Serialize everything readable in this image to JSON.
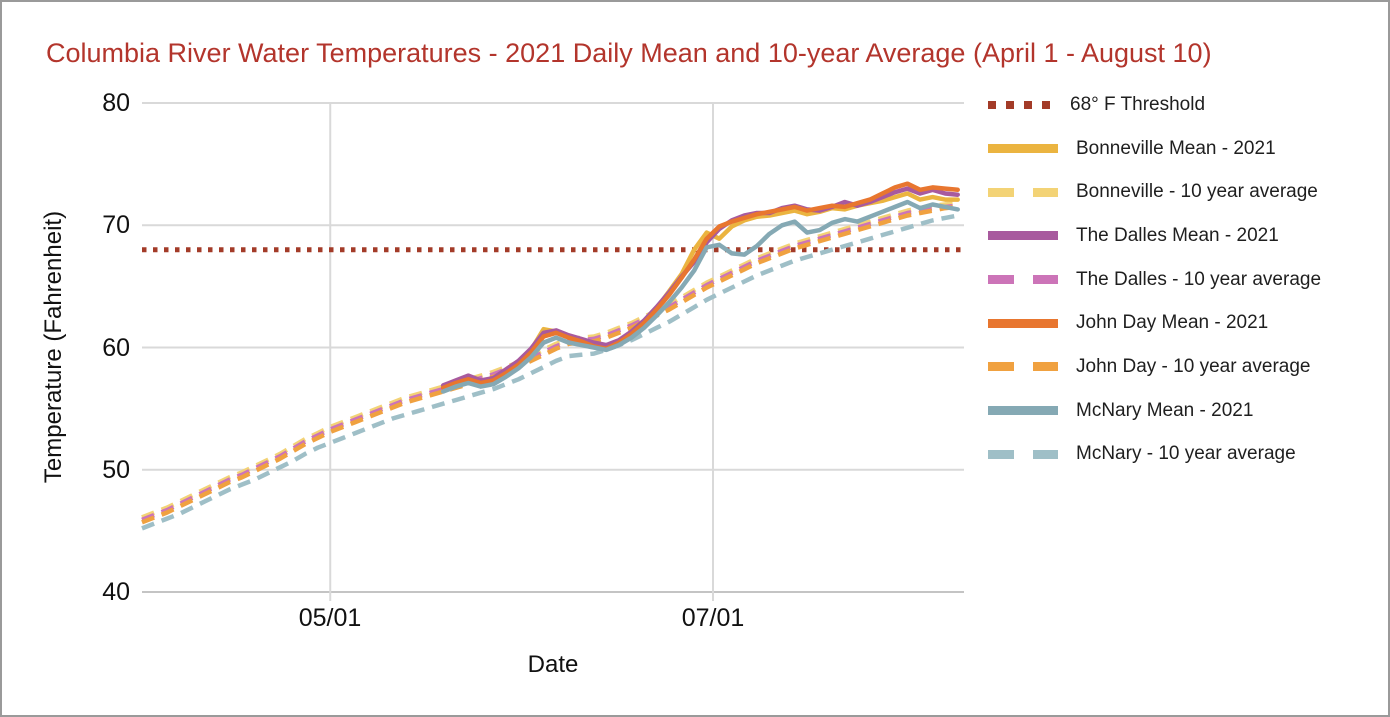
{
  "title": {
    "text": "Columbia River Water Temperatures - 2021 Daily Mean and 10-year Average (April 1 - August 10)",
    "color": "#B3352C"
  },
  "axes": {
    "y_title": "Temperature (Fahrenheit)",
    "x_title": "Date",
    "y_ticks": [
      "80",
      "70",
      "60",
      "50",
      "40"
    ],
    "x_ticks": [
      "05/01",
      "07/01"
    ]
  },
  "legend": {
    "items": [
      {
        "label": "68° F Threshold",
        "color": "#A33B28",
        "style": "dotted"
      },
      {
        "label": "Bonneville Mean - 2021",
        "color": "#EBB440",
        "style": "solid"
      },
      {
        "label": "Bonneville - 10 year average",
        "color": "#F3D376",
        "style": "dashed"
      },
      {
        "label": "The Dalles Mean - 2021",
        "color": "#A85A9E",
        "style": "solid"
      },
      {
        "label": "The Dalles - 10 year average",
        "color": "#CC74B8",
        "style": "dashed"
      },
      {
        "label": "John Day Mean - 2021",
        "color": "#E8762F",
        "style": "solid"
      },
      {
        "label": "John Day - 10 year average",
        "color": "#F0A140",
        "style": "dashed"
      },
      {
        "label": "McNary Mean - 2021",
        "color": "#85A9B4",
        "style": "solid"
      },
      {
        "label": "McNary - 10 year average",
        "color": "#9FBFC7",
        "style": "dashed"
      }
    ]
  },
  "chart_data": {
    "type": "line",
    "title": "Columbia River Water Temperatures - 2021 Daily Mean and 10-year Average (April 1 - August 10)",
    "xlabel": "Date",
    "ylabel": "Temperature (Fahrenheit)",
    "ylim": [
      40,
      80
    ],
    "x_unit": "days after April 1, 2021",
    "x_range": [
      0,
      131
    ],
    "x_tick_positions": [
      30,
      91
    ],
    "x_tick_labels": [
      "05/01",
      "07/01"
    ],
    "y_tick_values": [
      80,
      70,
      60,
      50,
      40
    ],
    "grid": true,
    "legend_position": "right",
    "threshold": {
      "label": "68° F Threshold",
      "value": 68,
      "color": "#A33B28",
      "style": "dotted"
    },
    "days": [
      0,
      2,
      4,
      6,
      8,
      10,
      12,
      14,
      16,
      18,
      20,
      22,
      24,
      26,
      28,
      30,
      32,
      34,
      36,
      38,
      40,
      42,
      44,
      46,
      48,
      50,
      52,
      54,
      56,
      58,
      60,
      62,
      64,
      66,
      68,
      70,
      72,
      74,
      76,
      78,
      80,
      82,
      84,
      86,
      88,
      90,
      92,
      94,
      96,
      98,
      100,
      102,
      104,
      106,
      108,
      110,
      112,
      114,
      116,
      118,
      120,
      122,
      124,
      126,
      128,
      130
    ],
    "series": [
      {
        "name": "Bonneville Mean - 2021",
        "color": "#EBB440",
        "style": "solid",
        "values": [
          null,
          null,
          null,
          null,
          null,
          null,
          null,
          null,
          null,
          null,
          null,
          null,
          null,
          null,
          null,
          null,
          null,
          null,
          null,
          null,
          null,
          null,
          null,
          null,
          56.8,
          57.2,
          57.6,
          57.2,
          57.4,
          58.0,
          58.8,
          59.8,
          61.5,
          61.3,
          60.9,
          60.6,
          60.3,
          60.1,
          60.5,
          61.2,
          62.1,
          63.2,
          64.6,
          66.0,
          68.0,
          69.4,
          68.9,
          69.9,
          70.4,
          70.7,
          70.8,
          71.0,
          71.2,
          70.9,
          71.1,
          71.4,
          71.3,
          71.6,
          71.8,
          72.0,
          72.3,
          72.6,
          72.1,
          72.3,
          72.1,
          72.1
        ]
      },
      {
        "name": "Bonneville - 10 year average",
        "color": "#F3D376",
        "style": "dashed",
        "values": [
          46.1,
          46.5,
          46.9,
          47.4,
          47.9,
          48.4,
          48.9,
          49.4,
          49.8,
          50.3,
          50.8,
          51.3,
          51.9,
          52.5,
          53.0,
          53.5,
          53.9,
          54.3,
          54.7,
          55.1,
          55.5,
          55.9,
          56.2,
          56.5,
          56.8,
          57.1,
          57.4,
          57.7,
          58.0,
          58.4,
          58.8,
          59.3,
          59.8,
          60.3,
          60.7,
          60.8,
          60.9,
          61.2,
          61.6,
          62.0,
          62.5,
          63.0,
          63.5,
          64.1,
          64.7,
          65.3,
          65.8,
          66.3,
          66.8,
          67.3,
          67.7,
          68.1,
          68.5,
          68.8,
          69.1,
          69.4,
          69.7,
          70.0,
          70.3,
          70.6,
          70.9,
          71.2,
          71.4,
          71.6,
          71.7,
          71.8
        ]
      },
      {
        "name": "The Dalles Mean - 2021",
        "color": "#A85A9E",
        "style": "solid",
        "values": [
          null,
          null,
          null,
          null,
          null,
          null,
          null,
          null,
          null,
          null,
          null,
          null,
          null,
          null,
          null,
          null,
          null,
          null,
          null,
          null,
          null,
          null,
          null,
          null,
          56.9,
          57.3,
          57.7,
          57.3,
          57.5,
          58.2,
          58.9,
          59.9,
          61.2,
          61.4,
          61.0,
          60.7,
          60.4,
          60.2,
          60.6,
          61.3,
          62.2,
          63.3,
          64.5,
          65.8,
          67.0,
          68.6,
          69.7,
          70.4,
          70.8,
          71.0,
          71.0,
          71.4,
          71.6,
          71.3,
          71.2,
          71.5,
          71.9,
          71.6,
          71.9,
          72.3,
          72.7,
          73.0,
          72.6,
          72.9,
          72.6,
          72.5
        ]
      },
      {
        "name": "The Dalles - 10 year average",
        "color": "#CC74B8",
        "style": "dashed",
        "values": [
          45.9,
          46.3,
          46.7,
          47.2,
          47.7,
          48.2,
          48.7,
          49.2,
          49.6,
          50.1,
          50.6,
          51.1,
          51.7,
          52.3,
          52.8,
          53.3,
          53.7,
          54.1,
          54.5,
          54.9,
          55.3,
          55.7,
          56.0,
          56.3,
          56.6,
          56.9,
          57.2,
          57.5,
          57.8,
          58.2,
          58.6,
          59.1,
          59.6,
          60.1,
          60.5,
          60.6,
          60.7,
          61.0,
          61.4,
          61.8,
          62.3,
          62.8,
          63.3,
          63.9,
          64.5,
          65.1,
          65.6,
          66.1,
          66.6,
          67.1,
          67.5,
          67.9,
          68.3,
          68.6,
          68.9,
          69.2,
          69.5,
          69.8,
          70.1,
          70.4,
          70.7,
          71.0,
          71.2,
          71.4,
          71.5,
          71.6
        ]
      },
      {
        "name": "John Day Mean - 2021",
        "color": "#E8762F",
        "style": "solid",
        "values": [
          null,
          null,
          null,
          null,
          null,
          null,
          null,
          null,
          null,
          null,
          null,
          null,
          null,
          null,
          null,
          null,
          null,
          null,
          null,
          null,
          null,
          null,
          null,
          null,
          56.7,
          57.1,
          57.4,
          57.1,
          57.3,
          57.9,
          58.6,
          59.6,
          60.9,
          61.2,
          60.8,
          60.5,
          60.1,
          59.9,
          60.4,
          61.1,
          62.0,
          63.1,
          64.3,
          65.7,
          67.2,
          68.9,
          69.9,
          70.3,
          70.6,
          70.9,
          71.1,
          71.3,
          71.5,
          71.2,
          71.4,
          71.6,
          71.5,
          71.8,
          72.1,
          72.6,
          73.1,
          73.4,
          72.9,
          73.1,
          73.0,
          72.9
        ]
      },
      {
        "name": "John Day - 10 year average",
        "color": "#F0A140",
        "style": "dashed",
        "values": [
          45.7,
          46.1,
          46.5,
          47.0,
          47.5,
          48.0,
          48.5,
          49.0,
          49.4,
          49.9,
          50.4,
          50.9,
          51.5,
          52.1,
          52.6,
          53.1,
          53.5,
          53.9,
          54.3,
          54.7,
          55.1,
          55.5,
          55.8,
          56.1,
          56.4,
          56.7,
          57.0,
          57.3,
          57.6,
          58.0,
          58.4,
          58.9,
          59.4,
          59.9,
          60.3,
          60.4,
          60.5,
          60.8,
          61.2,
          61.6,
          62.1,
          62.6,
          63.1,
          63.7,
          64.3,
          64.9,
          65.4,
          65.9,
          66.4,
          66.9,
          67.3,
          67.7,
          68.1,
          68.4,
          68.7,
          69.0,
          69.3,
          69.6,
          69.9,
          70.2,
          70.5,
          70.8,
          71.0,
          71.2,
          71.4,
          71.5
        ]
      },
      {
        "name": "McNary Mean - 2021",
        "color": "#85A9B4",
        "style": "solid",
        "values": [
          null,
          null,
          null,
          null,
          null,
          null,
          null,
          null,
          null,
          null,
          null,
          null,
          null,
          null,
          null,
          null,
          null,
          null,
          null,
          null,
          null,
          null,
          null,
          null,
          56.4,
          56.8,
          57.1,
          56.8,
          57.0,
          57.6,
          58.3,
          59.2,
          60.4,
          60.8,
          60.4,
          60.2,
          60.0,
          59.8,
          60.2,
          60.8,
          61.6,
          62.6,
          63.7,
          64.9,
          66.3,
          68.2,
          68.4,
          67.7,
          67.6,
          68.3,
          69.3,
          70.0,
          70.3,
          69.4,
          69.6,
          70.2,
          70.5,
          70.3,
          70.7,
          71.1,
          71.5,
          71.9,
          71.4,
          71.7,
          71.5,
          71.3
        ]
      },
      {
        "name": "McNary - 10 year average",
        "color": "#9FBFC7",
        "style": "dashed",
        "values": [
          45.2,
          45.6,
          46.0,
          46.4,
          46.9,
          47.4,
          47.9,
          48.4,
          48.8,
          49.2,
          49.7,
          50.2,
          50.7,
          51.3,
          51.8,
          52.2,
          52.6,
          53.0,
          53.4,
          53.8,
          54.2,
          54.5,
          54.8,
          55.1,
          55.4,
          55.7,
          56.0,
          56.3,
          56.6,
          57.0,
          57.4,
          57.9,
          58.4,
          58.9,
          59.3,
          59.4,
          59.5,
          59.8,
          60.2,
          60.6,
          61.1,
          61.6,
          62.1,
          62.7,
          63.3,
          63.9,
          64.4,
          64.9,
          65.4,
          65.9,
          66.3,
          66.7,
          67.1,
          67.4,
          67.7,
          68.0,
          68.3,
          68.6,
          68.9,
          69.2,
          69.5,
          69.8,
          70.1,
          70.4,
          70.6,
          70.8
        ]
      }
    ]
  }
}
